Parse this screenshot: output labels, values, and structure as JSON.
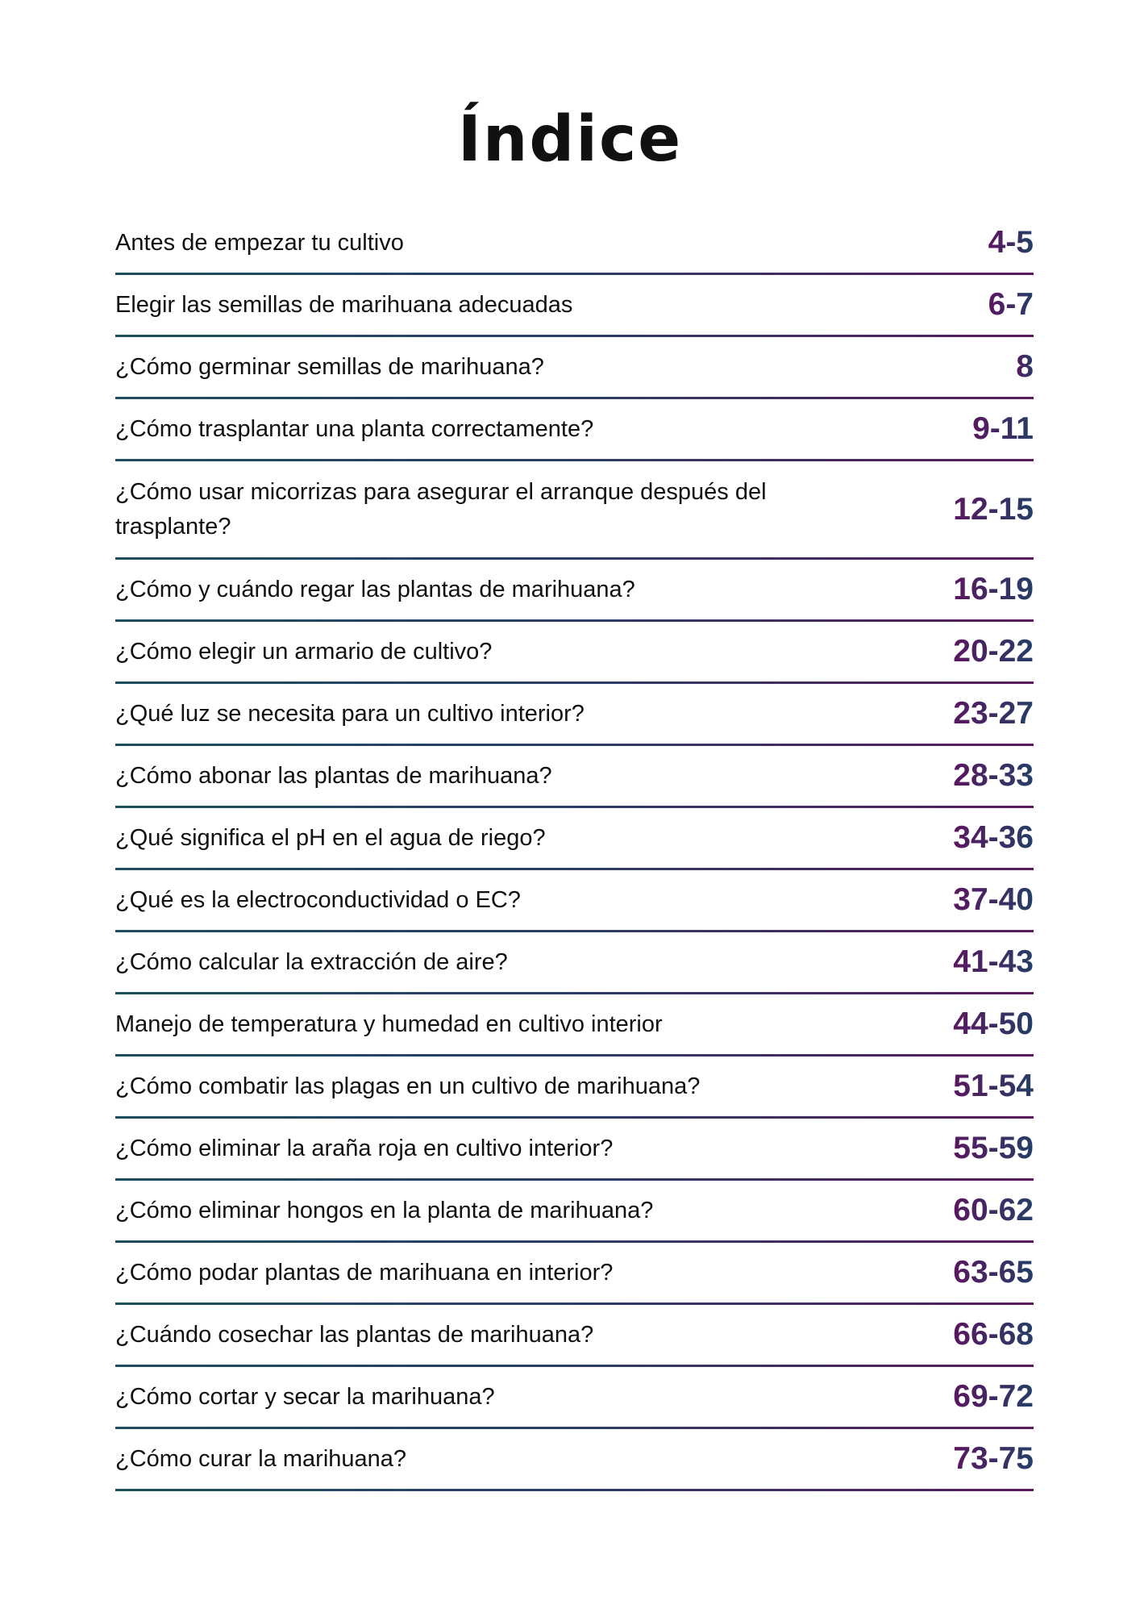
{
  "title": "Índice",
  "entries": [
    {
      "label": "Antes de empezar tu cultivo",
      "pages": "4-5"
    },
    {
      "label": "Elegir las semillas de marihuana adecuadas",
      "pages": "6-7"
    },
    {
      "label": "¿Cómo germinar semillas de marihuana?",
      "pages": "8"
    },
    {
      "label": "¿Cómo trasplantar una planta correctamente?",
      "pages": "9-11"
    },
    {
      "label": "¿Cómo usar micorrizas para asegurar el arranque después del trasplante?",
      "pages": "12-15"
    },
    {
      "label": "¿Cómo y cuándo regar las plantas de marihuana?",
      "pages": "16-19"
    },
    {
      "label": "¿Cómo elegir un armario de cultivo?",
      "pages": "20-22"
    },
    {
      "label": "¿Qué luz se necesita para un cultivo interior?",
      "pages": "23-27"
    },
    {
      "label": "¿Cómo abonar las plantas de marihuana?",
      "pages": "28-33"
    },
    {
      "label": "¿Qué significa el pH en el agua de riego?",
      "pages": "34-36"
    },
    {
      "label": "¿Qué es la electroconductividad o EC?",
      "pages": "37-40"
    },
    {
      "label": "¿Cómo calcular la extracción de aire?",
      "pages": "41-43"
    },
    {
      "label": "Manejo de temperatura y humedad en cultivo interior",
      "pages": "44-50"
    },
    {
      "label": "¿Cómo combatir las plagas en un cultivo de marihuana?",
      "pages": "51-54"
    },
    {
      "label": "¿Cómo eliminar la araña roja en cultivo interior?",
      "pages": "55-59"
    },
    {
      "label": "¿Cómo eliminar hongos en la planta de marihuana?",
      "pages": "60-62"
    },
    {
      "label": "¿Cómo podar plantas de marihuana en interior?",
      "pages": "63-65"
    },
    {
      "label": "¿Cuándo cosechar las plantas de marihuana?",
      "pages": "66-68"
    },
    {
      "label": "¿Cómo cortar y secar la marihuana?",
      "pages": "69-72"
    },
    {
      "label": "¿Cómo curar la marihuana?",
      "pages": "73-75"
    }
  ],
  "colors": {
    "line_start": "#1d4f5c",
    "line_end": "#5a1a5e",
    "number_start": "#5b1660",
    "number_end": "#243f66"
  }
}
